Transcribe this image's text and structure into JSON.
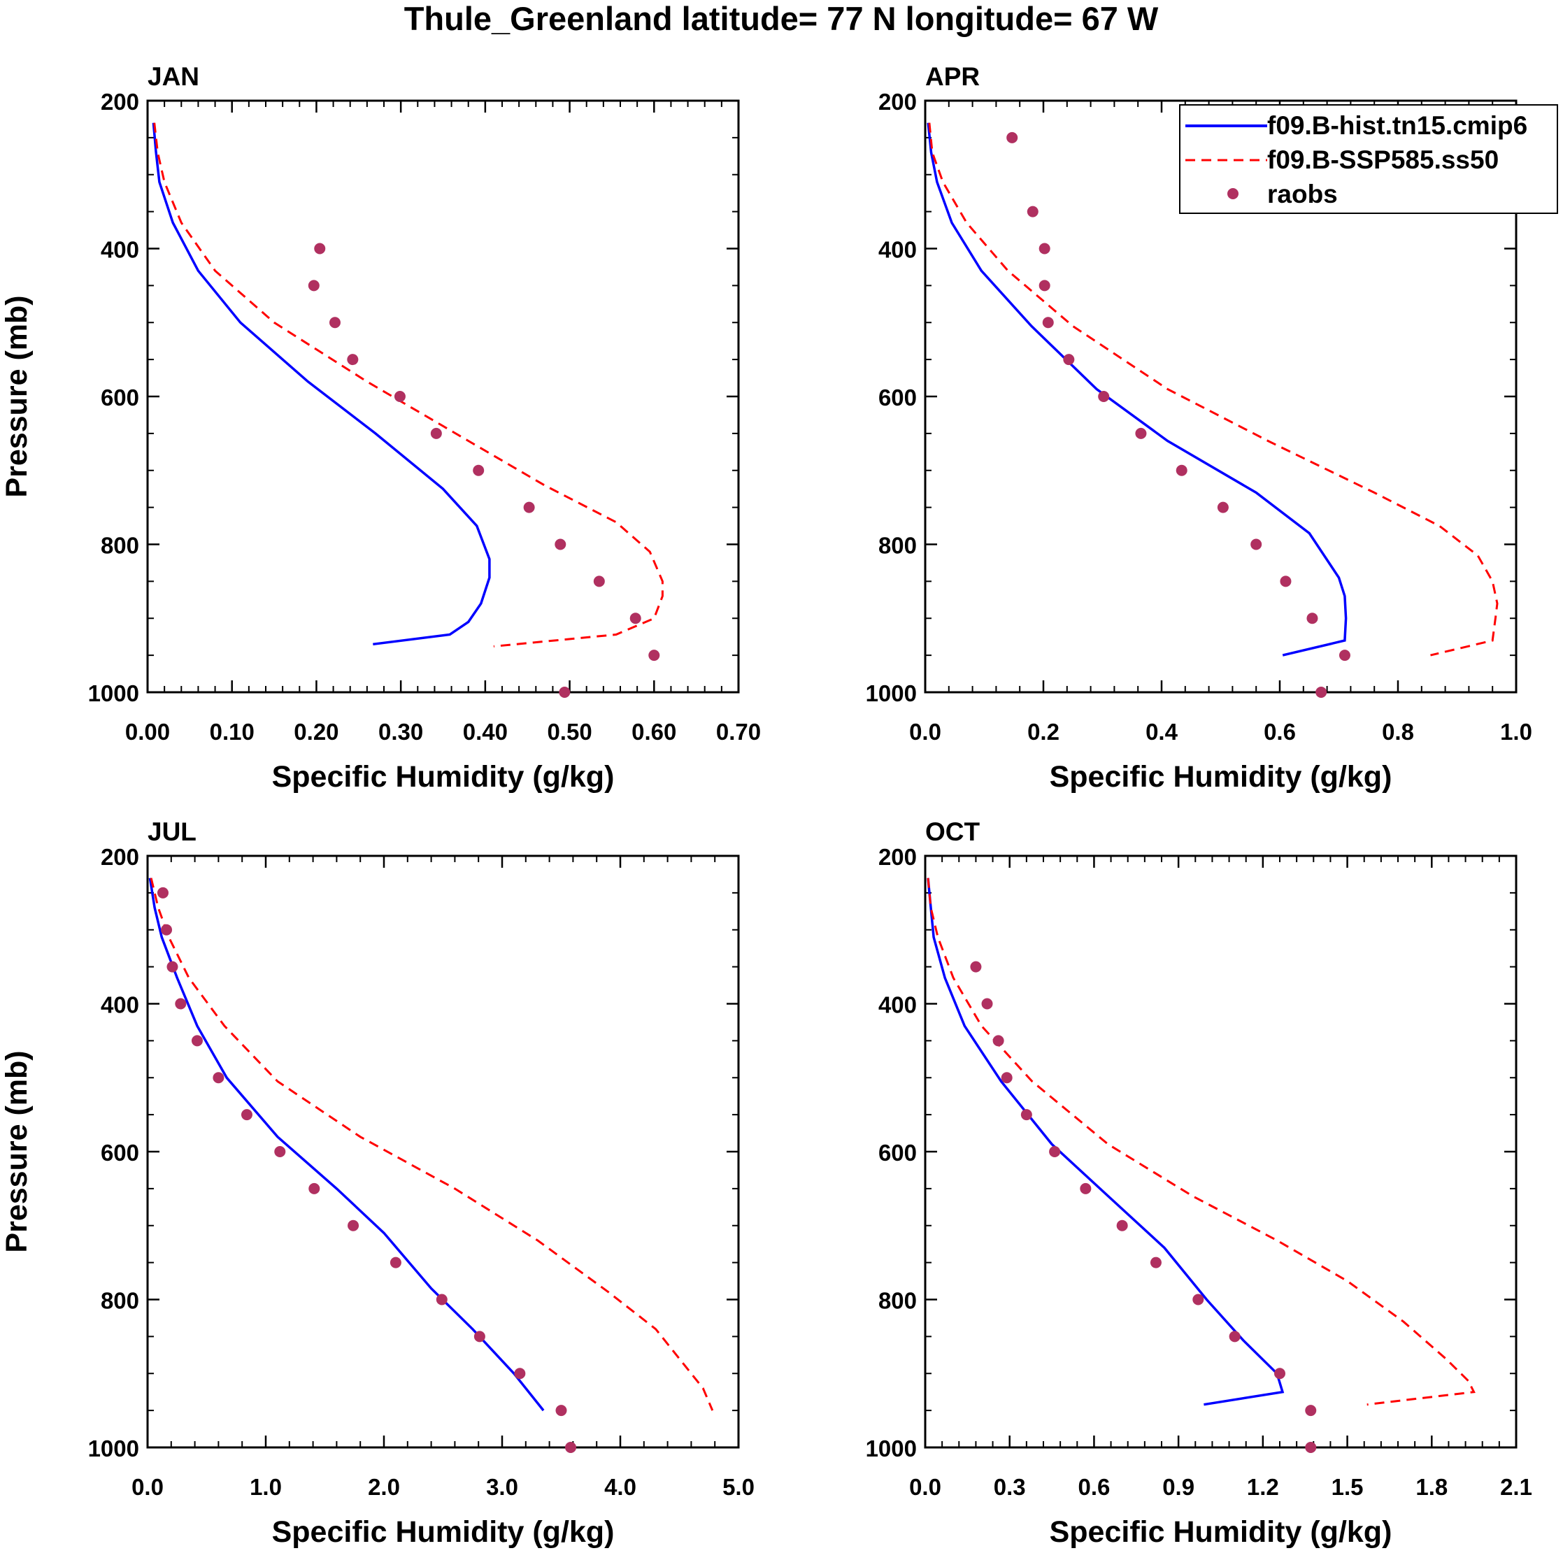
{
  "figure_title": "Thule_Greenland  latitude= 77 N longitude= 67 W",
  "colors": {
    "hist": "#0000ff",
    "ssp": "#ff0000",
    "raobs": "#b03060",
    "axis": "#000000"
  },
  "legend": {
    "location": "top-right of APR panel",
    "entries": [
      {
        "label": "f09.B-hist.tn15.cmip6",
        "style": "solid-line",
        "color": "#0000ff"
      },
      {
        "label": "f09.B-SSP585.ss50",
        "style": "dashed-line",
        "color": "#ff0000"
      },
      {
        "label": "raobs",
        "style": "dot",
        "color": "#b03060"
      }
    ]
  },
  "chart_data": [
    {
      "type": "line",
      "panel": "JAN",
      "title": "JAN",
      "xlabel": "Specific Humidity (g/kg)",
      "ylabel": "Pressure (mb)",
      "xlim": [
        0,
        0.7
      ],
      "ylim": [
        200,
        1000
      ],
      "y_inverted": true,
      "xticks": [
        0,
        0.1,
        0.2,
        0.3,
        0.4,
        0.5,
        0.6,
        0.7
      ],
      "xtick_labels": [
        "0.00",
        "0.10",
        "0.20",
        "0.30",
        "0.40",
        "0.50",
        "0.60",
        "0.70"
      ],
      "yticks": [
        200,
        400,
        600,
        800,
        1000
      ],
      "ytick_labels": [
        "200",
        "400",
        "600",
        "800",
        "1000"
      ],
      "series": [
        {
          "name": "f09.B-hist.tn15.cmip6",
          "style": "solid",
          "points": [
            [
              0.007,
              230
            ],
            [
              0.01,
              270
            ],
            [
              0.014,
              310
            ],
            [
              0.03,
              365
            ],
            [
              0.06,
              430
            ],
            [
              0.11,
              500
            ],
            [
              0.19,
              580
            ],
            [
              0.27,
              650
            ],
            [
              0.35,
              725
            ],
            [
              0.39,
              775
            ],
            [
              0.405,
              820
            ],
            [
              0.405,
              845
            ],
            [
              0.395,
              880
            ],
            [
              0.38,
              905
            ],
            [
              0.358,
              922
            ],
            [
              0.267,
              935
            ]
          ]
        },
        {
          "name": "f09.B-SSP585.ss50",
          "style": "dashed",
          "points": [
            [
              0.008,
              230
            ],
            [
              0.012,
              270
            ],
            [
              0.02,
              310
            ],
            [
              0.04,
              365
            ],
            [
              0.08,
              430
            ],
            [
              0.15,
              500
            ],
            [
              0.26,
              580
            ],
            [
              0.38,
              660
            ],
            [
              0.47,
              720
            ],
            [
              0.555,
              770
            ],
            [
              0.595,
              810
            ],
            [
              0.61,
              850
            ],
            [
              0.61,
              870
            ],
            [
              0.6,
              900
            ],
            [
              0.555,
              922
            ],
            [
              0.41,
              938
            ]
          ]
        },
        {
          "name": "raobs",
          "style": "dots",
          "points": [
            [
              0.204,
              400
            ],
            [
              0.197,
              450
            ],
            [
              0.222,
              500
            ],
            [
              0.243,
              550
            ],
            [
              0.299,
              600
            ],
            [
              0.342,
              650
            ],
            [
              0.392,
              700
            ],
            [
              0.452,
              750
            ],
            [
              0.489,
              800
            ],
            [
              0.535,
              850
            ],
            [
              0.578,
              900
            ],
            [
              0.6,
              950
            ],
            [
              0.494,
              1000
            ]
          ]
        }
      ]
    },
    {
      "type": "line",
      "panel": "APR",
      "title": "APR",
      "xlabel": "Specific Humidity (g/kg)",
      "ylabel": "",
      "xlim": [
        0,
        1.0
      ],
      "ylim": [
        200,
        1000
      ],
      "y_inverted": true,
      "xticks": [
        0,
        0.2,
        0.4,
        0.6,
        0.8,
        1.0
      ],
      "xtick_labels": [
        "0.0",
        "0.2",
        "0.4",
        "0.6",
        "0.8",
        "1.0"
      ],
      "yticks": [
        200,
        400,
        600,
        800,
        1000
      ],
      "ytick_labels": [
        "200",
        "400",
        "600",
        "800",
        "1000"
      ],
      "series": [
        {
          "name": "f09.B-hist.tn15.cmip6",
          "style": "solid",
          "points": [
            [
              0.005,
              230
            ],
            [
              0.01,
              270
            ],
            [
              0.02,
              310
            ],
            [
              0.045,
              365
            ],
            [
              0.095,
              430
            ],
            [
              0.18,
              505
            ],
            [
              0.29,
              590
            ],
            [
              0.41,
              660
            ],
            [
              0.56,
              730
            ],
            [
              0.65,
              785
            ],
            [
              0.7,
              845
            ],
            [
              0.71,
              870
            ],
            [
              0.712,
              900
            ],
            [
              0.71,
              930
            ],
            [
              0.605,
              950
            ]
          ]
        },
        {
          "name": "f09.B-SSP585.ss50",
          "style": "dashed",
          "points": [
            [
              0.007,
              230
            ],
            [
              0.012,
              270
            ],
            [
              0.03,
              310
            ],
            [
              0.07,
              365
            ],
            [
              0.14,
              430
            ],
            [
              0.25,
              505
            ],
            [
              0.41,
              590
            ],
            [
              0.58,
              660
            ],
            [
              0.76,
              730
            ],
            [
              0.87,
              775
            ],
            [
              0.935,
              815
            ],
            [
              0.96,
              850
            ],
            [
              0.968,
              880
            ],
            [
              0.965,
              900
            ],
            [
              0.96,
              930
            ],
            [
              0.855,
              950
            ]
          ]
        },
        {
          "name": "raobs",
          "style": "dots",
          "points": [
            [
              0.147,
              250
            ],
            [
              0.182,
              350
            ],
            [
              0.202,
              400
            ],
            [
              0.202,
              450
            ],
            [
              0.208,
              500
            ],
            [
              0.243,
              550
            ],
            [
              0.302,
              600
            ],
            [
              0.365,
              650
            ],
            [
              0.434,
              700
            ],
            [
              0.504,
              750
            ],
            [
              0.56,
              800
            ],
            [
              0.61,
              850
            ],
            [
              0.655,
              900
            ],
            [
              0.71,
              950
            ],
            [
              0.67,
              1000
            ]
          ]
        }
      ]
    },
    {
      "type": "line",
      "panel": "JUL",
      "title": "JUL",
      "xlabel": "Specific Humidity (g/kg)",
      "ylabel": "Pressure (mb)",
      "xlim": [
        0,
        5.0
      ],
      "ylim": [
        200,
        1000
      ],
      "y_inverted": true,
      "xticks": [
        0,
        1,
        2,
        3,
        4,
        5
      ],
      "xtick_labels": [
        "0.0",
        "1.0",
        "2.0",
        "3.0",
        "4.0",
        "5.0"
      ],
      "yticks": [
        200,
        400,
        600,
        800,
        1000
      ],
      "ytick_labels": [
        "200",
        "400",
        "600",
        "800",
        "1000"
      ],
      "series": [
        {
          "name": "f09.B-hist.tn15.cmip6",
          "style": "solid",
          "points": [
            [
              0.02,
              230
            ],
            [
              0.06,
              270
            ],
            [
              0.12,
              310
            ],
            [
              0.25,
              365
            ],
            [
              0.42,
              430
            ],
            [
              0.67,
              500
            ],
            [
              1.1,
              580
            ],
            [
              1.6,
              650
            ],
            [
              2.0,
              710
            ],
            [
              2.4,
              785
            ],
            [
              2.75,
              840
            ],
            [
              3.1,
              900
            ],
            [
              3.35,
              950
            ]
          ]
        },
        {
          "name": "f09.B-SSP585.ss50",
          "style": "dashed",
          "points": [
            [
              0.03,
              230
            ],
            [
              0.09,
              270
            ],
            [
              0.18,
              310
            ],
            [
              0.35,
              365
            ],
            [
              0.65,
              430
            ],
            [
              1.1,
              505
            ],
            [
              1.8,
              580
            ],
            [
              2.6,
              650
            ],
            [
              3.3,
              720
            ],
            [
              3.9,
              790
            ],
            [
              4.3,
              840
            ],
            [
              4.55,
              890
            ],
            [
              4.7,
              920
            ],
            [
              4.78,
              950
            ]
          ]
        },
        {
          "name": "raobs",
          "style": "dots",
          "points": [
            [
              0.13,
              250
            ],
            [
              0.16,
              300
            ],
            [
              0.21,
              350
            ],
            [
              0.28,
              400
            ],
            [
              0.42,
              450
            ],
            [
              0.6,
              500
            ],
            [
              0.84,
              550
            ],
            [
              1.12,
              600
            ],
            [
              1.41,
              650
            ],
            [
              1.74,
              700
            ],
            [
              2.1,
              750
            ],
            [
              2.49,
              800
            ],
            [
              2.81,
              850
            ],
            [
              3.15,
              900
            ],
            [
              3.5,
              950
            ],
            [
              3.58,
              1000
            ]
          ]
        }
      ]
    },
    {
      "type": "line",
      "panel": "OCT",
      "title": "OCT",
      "xlabel": "Specific Humidity (g/kg)",
      "ylabel": "",
      "xlim": [
        0,
        2.1
      ],
      "ylim": [
        200,
        1000
      ],
      "y_inverted": true,
      "xticks": [
        0,
        0.3,
        0.6,
        0.9,
        1.2,
        1.5,
        1.8,
        2.1
      ],
      "xtick_labels": [
        "0.0",
        "0.3",
        "0.6",
        "0.9",
        "1.2",
        "1.5",
        "1.8",
        "2.1"
      ],
      "yticks": [
        200,
        400,
        600,
        800,
        1000
      ],
      "ytick_labels": [
        "200",
        "400",
        "600",
        "800",
        "1000"
      ],
      "series": [
        {
          "name": "f09.B-hist.tn15.cmip6",
          "style": "solid",
          "points": [
            [
              0.01,
              230
            ],
            [
              0.02,
              270
            ],
            [
              0.03,
              310
            ],
            [
              0.07,
              365
            ],
            [
              0.14,
              430
            ],
            [
              0.27,
              505
            ],
            [
              0.45,
              590
            ],
            [
              0.65,
              660
            ],
            [
              0.85,
              730
            ],
            [
              1.0,
              800
            ],
            [
              1.13,
              855
            ],
            [
              1.25,
              900
            ],
            [
              1.27,
              925
            ],
            [
              0.99,
              942
            ]
          ]
        },
        {
          "name": "f09.B-SSP585.ss50",
          "style": "dashed",
          "points": [
            [
              0.01,
              230
            ],
            [
              0.02,
              270
            ],
            [
              0.045,
              310
            ],
            [
              0.1,
              365
            ],
            [
              0.2,
              430
            ],
            [
              0.38,
              505
            ],
            [
              0.65,
              590
            ],
            [
              0.95,
              660
            ],
            [
              1.25,
              720
            ],
            [
              1.5,
              775
            ],
            [
              1.7,
              830
            ],
            [
              1.85,
              880
            ],
            [
              1.93,
              910
            ],
            [
              1.95,
              925
            ],
            [
              1.57,
              942
            ]
          ]
        },
        {
          "name": "raobs",
          "style": "dots",
          "points": [
            [
              0.18,
              350
            ],
            [
              0.22,
              400
            ],
            [
              0.26,
              450
            ],
            [
              0.29,
              500
            ],
            [
              0.36,
              550
            ],
            [
              0.46,
              600
            ],
            [
              0.57,
              650
            ],
            [
              0.7,
              700
            ],
            [
              0.82,
              750
            ],
            [
              0.97,
              800
            ],
            [
              1.1,
              850
            ],
            [
              1.26,
              900
            ],
            [
              1.37,
              950
            ],
            [
              1.37,
              1000
            ]
          ]
        }
      ]
    }
  ]
}
